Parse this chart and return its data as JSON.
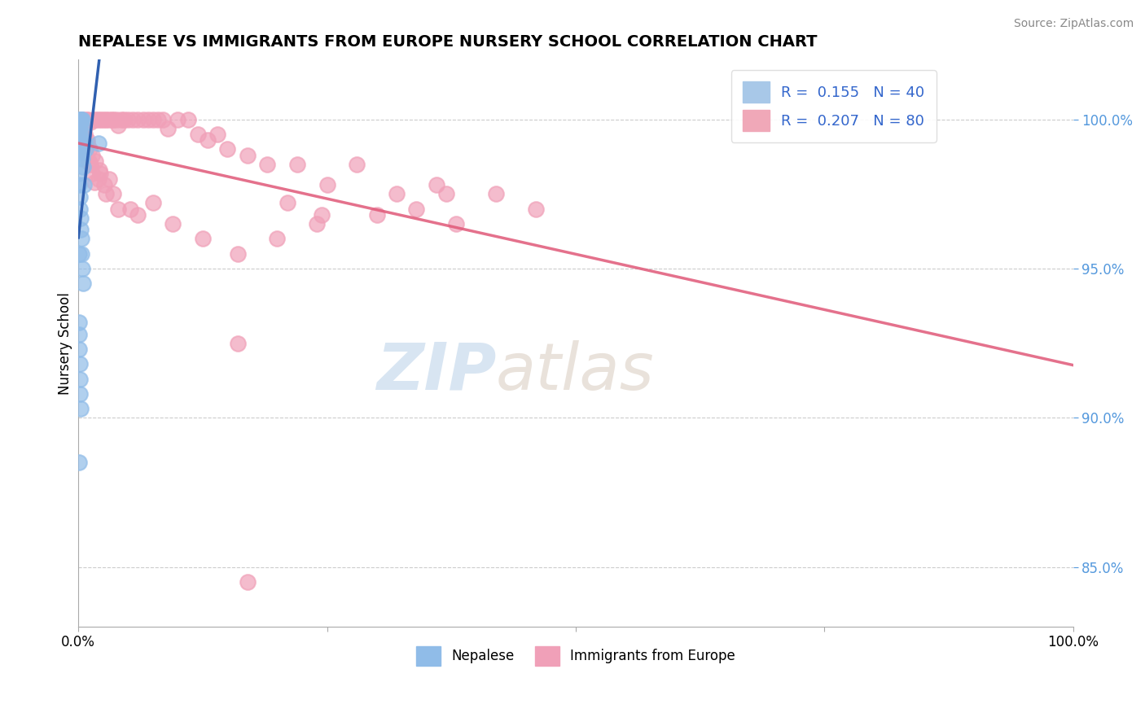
{
  "title": "NEPALESE VS IMMIGRANTS FROM EUROPE NURSERY SCHOOL CORRELATION CHART",
  "source": "Source: ZipAtlas.com",
  "ylabel": "Nursery School",
  "ytick_values": [
    85.0,
    90.0,
    95.0,
    100.0
  ],
  "ytick_labels": [
    "85.0%",
    "90.0%",
    "95.0%",
    "100.0%"
  ],
  "nepalese_color": "#90bce8",
  "europe_color": "#f0a0b8",
  "nepalese_line_color": "#3060b0",
  "europe_line_color": "#e05878",
  "watermark_zip": "ZIP",
  "watermark_atlas": "atlas",
  "nepalese_x": [
    0.1,
    0.15,
    0.2,
    0.25,
    0.3,
    0.35,
    0.4,
    0.5,
    0.6,
    0.7,
    0.1,
    0.12,
    0.18,
    0.22,
    0.28,
    0.32,
    0.38,
    0.42,
    0.48,
    0.55,
    0.08,
    0.1,
    0.14,
    0.16,
    0.2,
    0.25,
    0.3,
    0.35,
    0.4,
    0.45,
    0.05,
    0.07,
    0.1,
    0.12,
    0.15,
    0.18,
    0.22,
    2.0,
    0.08,
    0.06
  ],
  "nepalese_y": [
    99.8,
    100.0,
    100.0,
    99.9,
    100.0,
    99.8,
    100.0,
    99.5,
    99.2,
    99.0,
    99.3,
    99.5,
    99.4,
    99.0,
    98.9,
    98.7,
    98.9,
    98.7,
    98.4,
    97.8,
    98.2,
    97.8,
    97.4,
    97.0,
    96.7,
    96.3,
    96.0,
    95.5,
    95.0,
    94.5,
    93.2,
    92.8,
    92.3,
    91.8,
    91.3,
    90.8,
    90.3,
    99.2,
    95.5,
    88.5
  ],
  "europe_x": [
    0.3,
    0.5,
    0.8,
    1.0,
    1.2,
    1.5,
    1.8,
    2.0,
    2.3,
    2.5,
    2.8,
    3.0,
    3.3,
    3.5,
    3.8,
    4.0,
    4.3,
    4.6,
    5.0,
    5.5,
    6.0,
    6.5,
    7.0,
    7.5,
    8.0,
    8.5,
    9.0,
    10.0,
    11.0,
    12.0,
    13.0,
    14.0,
    15.0,
    17.0,
    19.0,
    22.0,
    25.0,
    28.0,
    32.0,
    36.0,
    0.2,
    0.4,
    0.6,
    0.9,
    1.1,
    1.4,
    1.7,
    2.1,
    2.6,
    3.1,
    0.35,
    0.55,
    0.75,
    1.05,
    1.35,
    1.65,
    2.2,
    3.5,
    5.2,
    7.5,
    9.5,
    12.5,
    16.0,
    20.0,
    24.0,
    30.0,
    34.0,
    38.0,
    42.0,
    46.0,
    0.45,
    0.85,
    1.25,
    2.0,
    2.8,
    4.0,
    6.0,
    21.0,
    24.5,
    37.0
  ],
  "europe_y": [
    100.0,
    100.0,
    100.0,
    100.0,
    99.9,
    100.0,
    100.0,
    100.0,
    100.0,
    100.0,
    100.0,
    100.0,
    100.0,
    100.0,
    100.0,
    99.8,
    100.0,
    100.0,
    100.0,
    100.0,
    100.0,
    100.0,
    100.0,
    100.0,
    100.0,
    100.0,
    99.7,
    100.0,
    100.0,
    99.5,
    99.3,
    99.5,
    99.0,
    98.8,
    98.5,
    98.5,
    97.8,
    98.5,
    97.5,
    97.8,
    99.8,
    99.7,
    99.5,
    99.3,
    99.0,
    98.8,
    98.6,
    98.3,
    97.8,
    98.0,
    99.5,
    99.2,
    98.9,
    98.6,
    98.2,
    97.9,
    98.2,
    97.5,
    97.0,
    97.2,
    96.5,
    96.0,
    95.5,
    96.0,
    96.5,
    96.8,
    97.0,
    96.5,
    97.5,
    97.0,
    99.0,
    99.2,
    98.5,
    98.0,
    97.5,
    97.0,
    96.8,
    97.2,
    96.8,
    97.5
  ],
  "europe_outlier_x": [
    16.0
  ],
  "europe_outlier_y": [
    92.5
  ],
  "europe_outlier2_x": [
    17.0
  ],
  "europe_outlier2_y": [
    84.5
  ]
}
